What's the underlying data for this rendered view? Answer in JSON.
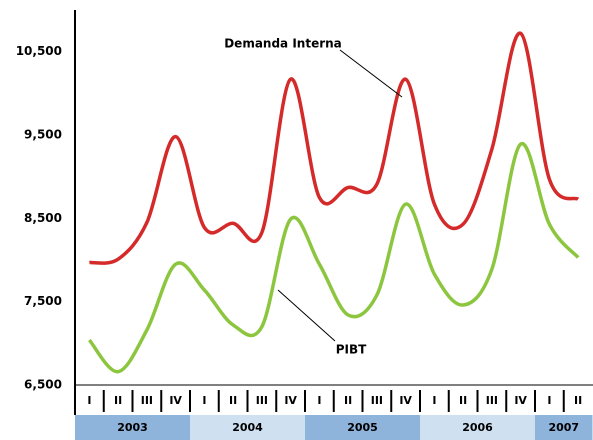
{
  "chart_data": {
    "type": "line",
    "categories": [
      "I",
      "II",
      "III",
      "IV",
      "I",
      "II",
      "III",
      "IV",
      "I",
      "II",
      "III",
      "IV",
      "I",
      "II",
      "III",
      "IV",
      "I",
      "II"
    ],
    "years": [
      "2003",
      "2004",
      "2005",
      "2006",
      "2007"
    ],
    "series": [
      {
        "name": "Demanda Interna",
        "color": "#d42a2a",
        "values": [
          7970,
          8010,
          8450,
          9480,
          8390,
          8440,
          8330,
          10170,
          8750,
          8870,
          8910,
          10170,
          8670,
          8430,
          9330,
          10720,
          8970,
          8730
        ]
      },
      {
        "name": "PIBT",
        "color": "#8cc63f",
        "values": [
          7040,
          6660,
          7160,
          7950,
          7640,
          7220,
          7200,
          8490,
          7950,
          7340,
          7580,
          8670,
          7830,
          7460,
          7890,
          9390,
          8430,
          8030
        ]
      }
    ],
    "ylim": [
      6500,
      11000
    ],
    "yticks": [
      {
        "value": 6500,
        "label": "6,500"
      },
      {
        "value": 7500,
        "label": "7,500"
      },
      {
        "value": 8500,
        "label": "8,500"
      },
      {
        "value": 9500,
        "label": "9,500"
      },
      {
        "value": 10500,
        "label": "10,500"
      }
    ],
    "grid": false,
    "year_colors": [
      "#8fb4dc",
      "#cfe0f0"
    ]
  }
}
